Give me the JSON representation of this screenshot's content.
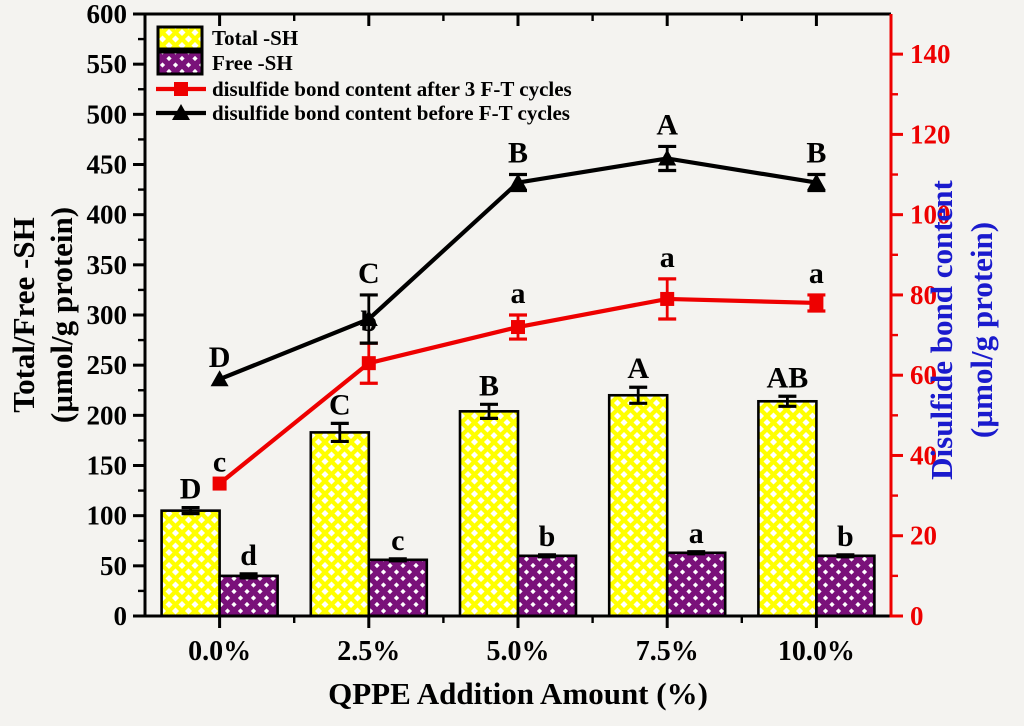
{
  "chart_data": {
    "type": "bar",
    "subtype": "grouped-bars-with-overlaid-lines",
    "categories": [
      "0.0%",
      "2.5%",
      "5.0%",
      "7.5%",
      "10.0%"
    ],
    "bar_series": [
      {
        "name": "Total -SH",
        "axis": "left",
        "values": [
          105,
          183,
          204,
          220,
          214
        ],
        "errors": [
          3,
          9,
          7,
          8,
          5
        ],
        "sig_letters": [
          "D",
          "C",
          "B",
          "A",
          "AB"
        ],
        "hatch_color": "#ffff00",
        "hatch": "yellow",
        "border_color": "#000000"
      },
      {
        "name": "Free -SH",
        "axis": "left",
        "values": [
          40,
          56,
          60,
          63,
          60
        ],
        "errors": [
          2,
          1,
          1,
          1,
          1
        ],
        "sig_letters": [
          "d",
          "c",
          "b",
          "a",
          "b"
        ],
        "hatch_color": "#7a117a",
        "hatch": "purple",
        "border_color": "#000000"
      }
    ],
    "line_series": [
      {
        "name": "disulfide bond content after 3 F-T cycles",
        "axis": "right",
        "marker": "square",
        "color": "#ee0000",
        "values": [
          33,
          63,
          72,
          79,
          78
        ],
        "errors": [
          0,
          5,
          3,
          5,
          2
        ],
        "sig_letters": [
          "c",
          "b",
          "a",
          "a",
          "a"
        ]
      },
      {
        "name": "disulfide bond content before F-T cycles",
        "axis": "right",
        "marker": "triangle",
        "color": "#000000",
        "values": [
          59,
          74,
          108,
          114,
          108
        ],
        "errors": [
          0,
          6,
          2,
          3,
          2
        ],
        "sig_letters": [
          "D",
          "C",
          "B",
          "A",
          "B"
        ]
      }
    ],
    "left_axis": {
      "title_line1": "Total/Free -SH",
      "title_line2": "(µmol/g protein)",
      "min": 0,
      "max": 600,
      "major_tick_labels": [
        0,
        50,
        100,
        150,
        200,
        250,
        300,
        350,
        400,
        450,
        500,
        550,
        600
      ],
      "minor_step": 25,
      "color": "#000000"
    },
    "right_axis": {
      "title_line1": "Disulfide bond content",
      "title_line2": "(µmol/g protein)",
      "min": 0,
      "max": 150,
      "major_tick_labels": [
        0,
        20,
        40,
        60,
        80,
        100,
        120,
        140
      ],
      "minor_step": 10,
      "color": "#ee0000",
      "title_color": "#1a1acd"
    },
    "x_axis": {
      "title": "QPPE Addition Amount (%)",
      "tick_labels": [
        "0.0%",
        "2.5%",
        "5.0%",
        "7.5%",
        "10.0%"
      ],
      "color": "#000000"
    },
    "legend": [
      {
        "type": "patch",
        "hatch": "yellow",
        "label": "Total -SH"
      },
      {
        "type": "patch",
        "hatch": "purple",
        "label": "Free -SH"
      },
      {
        "type": "line",
        "marker": "square",
        "color": "#ee0000",
        "label": "disulfide bond content after 3 F-T cycles"
      },
      {
        "type": "line",
        "marker": "triangle",
        "color": "#000000",
        "label": "disulfide bond content before F-T cycles"
      }
    ],
    "sig_letter_color": "#000000",
    "background_color": "#f4f3f0",
    "layout": {
      "grid": false,
      "legend_position": "top-left-inside"
    }
  }
}
